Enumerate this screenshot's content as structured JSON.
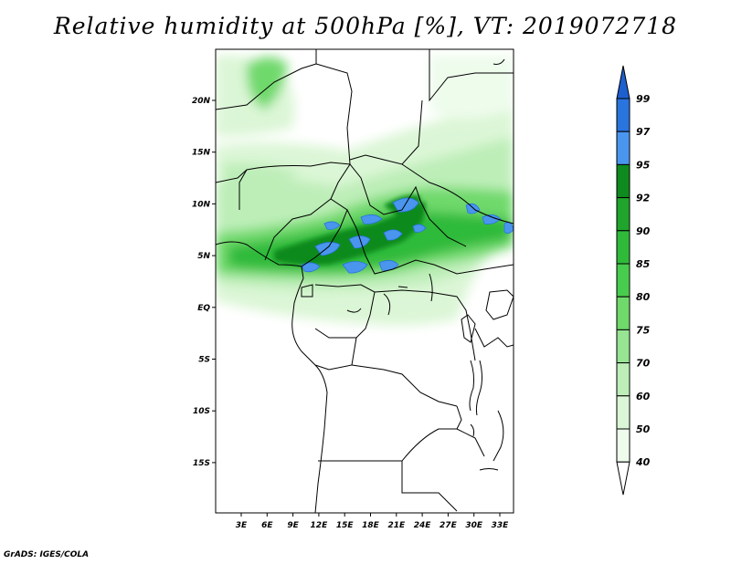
{
  "title": "Relative humidity at 500hPa [%], VT: 2019072718",
  "footer": "GrADS: IGES/COLA",
  "map": {
    "lon_labels": [
      "3E",
      "6E",
      "9E",
      "12E",
      "15E",
      "18E",
      "21E",
      "24E",
      "27E",
      "30E",
      "33E"
    ],
    "lat_labels": [
      "20N",
      "15N",
      "10N",
      "5N",
      "EQ",
      "5S",
      "10S",
      "15S"
    ]
  },
  "colorbar": {
    "labels": [
      "99",
      "97",
      "95",
      "92",
      "90",
      "85",
      "80",
      "75",
      "70",
      "60",
      "50",
      "40"
    ],
    "colors": [
      "#1d5fcf",
      "#2a74de",
      "#4a96ee",
      "#0f8a1f",
      "#1fa52c",
      "#2fba3a",
      "#48cc4d",
      "#6fd96c",
      "#97e493",
      "#bdeeb8",
      "#dbf6d6",
      "#eefcec"
    ]
  }
}
